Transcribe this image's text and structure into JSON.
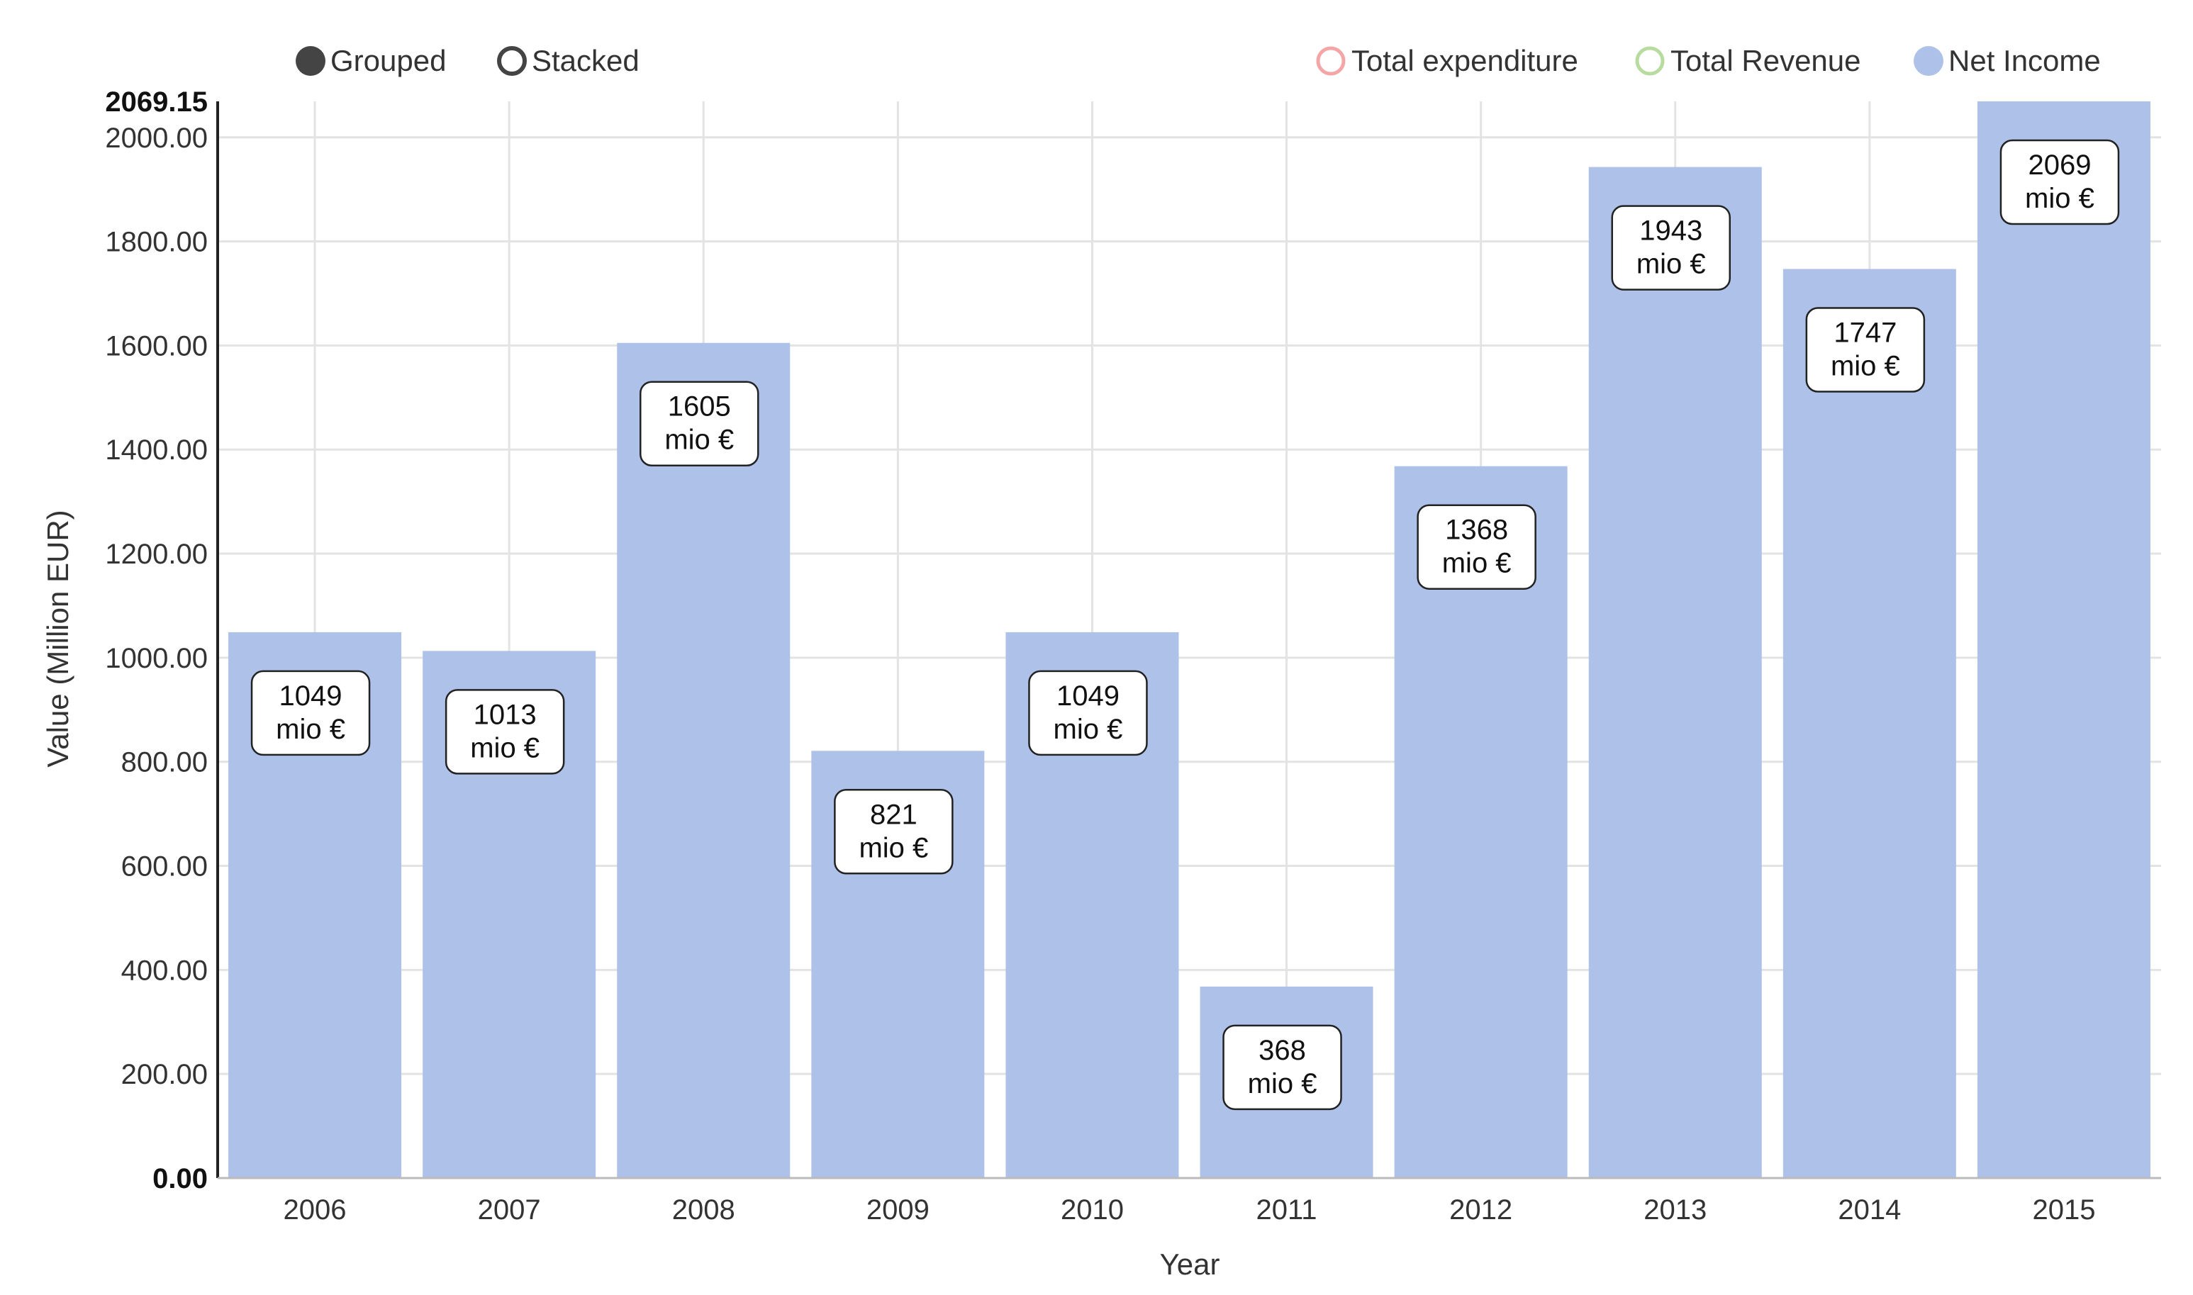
{
  "controls": {
    "grouped_label": "Grouped",
    "stacked_label": "Stacked",
    "selected": "Grouped"
  },
  "legend": [
    {
      "name": "Total expenditure",
      "color": "#f4a6a6",
      "enabled": false
    },
    {
      "name": "Total Revenue",
      "color": "#b8dca0",
      "enabled": false
    },
    {
      "name": "Net Income",
      "color": "#aec1e8",
      "enabled": true
    }
  ],
  "chart_data": {
    "type": "bar",
    "categories": [
      "2006",
      "2007",
      "2008",
      "2009",
      "2010",
      "2011",
      "2012",
      "2013",
      "2014",
      "2015"
    ],
    "series": [
      {
        "name": "Net Income",
        "values": [
          1049,
          1013,
          1605,
          821,
          1049,
          368,
          1368,
          1943,
          1747,
          2069.15
        ]
      }
    ],
    "data_labels": [
      [
        "1049",
        "mio €"
      ],
      [
        "1013",
        "mio €"
      ],
      [
        "1605",
        "mio €"
      ],
      [
        "821",
        "mio €"
      ],
      [
        "1049",
        "mio €"
      ],
      [
        "368",
        "mio €"
      ],
      [
        "1368",
        "mio €"
      ],
      [
        "1943",
        "mio €"
      ],
      [
        "1747",
        "mio €"
      ],
      [
        "2069",
        "mio €"
      ]
    ],
    "xlabel": "Year",
    "ylabel": "Value (Million EUR)",
    "ylim": [
      0,
      2069.15
    ],
    "yticks": [
      {
        "value": 0,
        "label": "0.00",
        "bold": true
      },
      {
        "value": 200,
        "label": "200.00"
      },
      {
        "value": 400,
        "label": "400.00"
      },
      {
        "value": 600,
        "label": "600.00"
      },
      {
        "value": 800,
        "label": "800.00"
      },
      {
        "value": 1000,
        "label": "1000.00"
      },
      {
        "value": 1200,
        "label": "1200.00"
      },
      {
        "value": 1400,
        "label": "1400.00"
      },
      {
        "value": 1600,
        "label": "1600.00"
      },
      {
        "value": 1800,
        "label": "1800.00"
      },
      {
        "value": 2000,
        "label": "2000.00"
      },
      {
        "value": 2069.15,
        "label": "2069.15",
        "bold": true
      }
    ],
    "grid": true,
    "legend_position": "top-right",
    "bar_color": "#aec1e8"
  }
}
